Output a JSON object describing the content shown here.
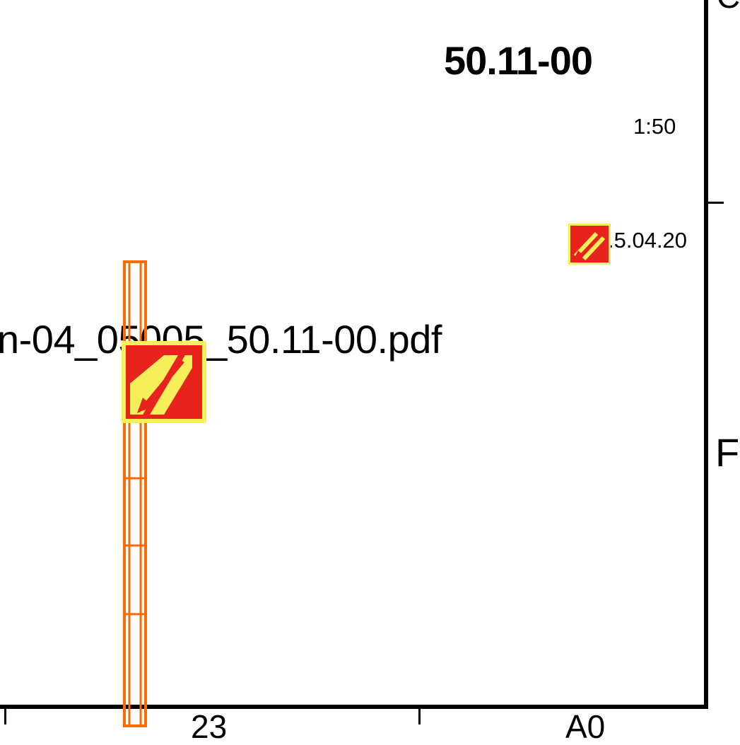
{
  "sheet": {
    "drawing_number": "50.11-00",
    "scale": "1:50",
    "date_fragment": ".5.04.20",
    "filename_fragment": "n-04_05005_50.11-00.pdf",
    "edge_letter_top": "C",
    "edge_letter_mid": "F",
    "ruler_left_fragment": "23",
    "ruler_right_fragment": "A0"
  },
  "markup": {
    "icon_name": "pencil-markup-icon",
    "colors": {
      "fill": "#e8231e",
      "border": "#f5f05a",
      "stripe": "#f5f05a",
      "bar": "#ff6a00"
    }
  },
  "frame": {
    "color": "#000000"
  }
}
